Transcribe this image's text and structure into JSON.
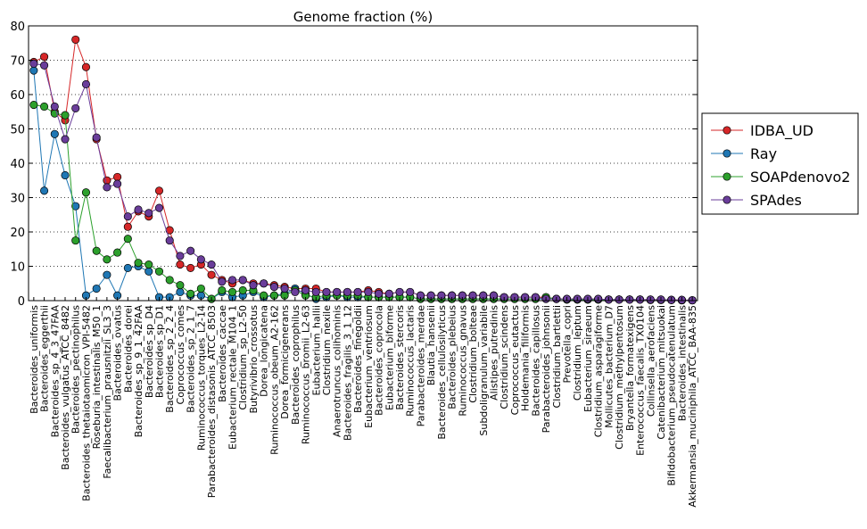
{
  "chart_data": {
    "type": "line",
    "title": "Genome fraction (%)",
    "xlabel": "",
    "ylabel": "",
    "ylim": [
      0,
      80
    ],
    "yticks": [
      0,
      10,
      20,
      30,
      40,
      50,
      60,
      70,
      80
    ],
    "grid": "horizontal dotted",
    "legend_position": "right",
    "categories": [
      "Bacteroides_uniformis",
      "Bacteroides_eggerthii",
      "Bacteroides_sp_4_3_47FAA",
      "Bacteroides_vulgatus_ATCC_8482",
      "Bacteroides_pectinophilus",
      "Bacteroides_thetaiotaomicron_VPI-5482",
      "Roseburia_intestinalis_M50_1",
      "Faecalibacterium_prausnitzii_SL3_3",
      "Bacteroides_ovatus",
      "Bacteroides_dorei",
      "Bacteroides_sp_9_1_42FAA",
      "Bacteroides_sp_D4",
      "Bacteroides_sp_D1",
      "Bacteroides_sp_2_2_4",
      "Coprococcus_comes",
      "Bacteroides_sp_2_1_7",
      "Ruminococcus_torques_L2-14",
      "Parabacteroides_distasonis_ATCC_8503",
      "Bacteroides_caccae",
      "Eubacterium_rectale_M104_1",
      "Clostridium_sp_L2-50",
      "Butyrivibrio_crossotus",
      "Dorea_longicatena",
      "Ruminococcus_obeum_A2-162",
      "Dorea_formicigenerans",
      "Bacteroides_coprophilus",
      "Ruminococcus_bromii_L2-63",
      "Eubacterium_hallii",
      "Clostridium_nexile",
      "Anaerotruncus_colihominis",
      "Bacteroides_fragilis_3_1_12",
      "Bacteroides_finegoldii",
      "Eubacterium_ventriosum",
      "Bacteroides_coprocola",
      "Eubacterium_biforme",
      "Bacteroides_stercoris",
      "Ruminococcus_lactaris",
      "Parabacteroides_merdae",
      "Blautia_hansenii",
      "Bacteroides_cellulosilyticus",
      "Bacteroides_plebeius",
      "Ruminococcus_gnavus",
      "Clostridium_bolteae",
      "Subdoligranulum_variabile",
      "Alistipes_putredinis",
      "Clostridium_scindens",
      "Coprococcus_eutactus",
      "Holdemania_filiformis",
      "Bacteroides_capillosus",
      "Parabacteroides_johnsonii",
      "Clostridium_bartlettii",
      "Prevotella_copri",
      "Clostridium_leptum",
      "Eubacterium_siraeum",
      "Clostridium_asparagiforme",
      "Mollicutes_bacterium_D7",
      "Clostridium_methylpentosum",
      "Bryantella_formatexigens",
      "Enterococcus_faecalis_TX0104",
      "Collinsella_aerofaciens",
      "Catenibacterium_mitsuokai",
      "Bifidobacterium_pseudocatenulatum",
      "Bacteroides_intestinalis",
      "Akkermansia_muciniphila_ATCC_BAA-835"
    ],
    "series": [
      {
        "name": "IDBA_UD",
        "color": "#d62728",
        "values": [
          69.5,
          71.0,
          55.0,
          52.5,
          76.0,
          68.0,
          47.0,
          35.0,
          36.0,
          21.5,
          26.0,
          24.5,
          32.0,
          20.5,
          10.5,
          9.5,
          10.5,
          7.5,
          6.0,
          5.0,
          6.0,
          5.0,
          5.0,
          4.5,
          4.0,
          3.5,
          3.5,
          3.5,
          2.5,
          2.5,
          2.5,
          2.5,
          3.0,
          2.5,
          2.0,
          2.5,
          2.5,
          1.5,
          1.5,
          1.5,
          1.5,
          1.5,
          1.5,
          1.5,
          1.5,
          1.0,
          1.0,
          1.0,
          1.0,
          1.0,
          0.5,
          0.5,
          0.5,
          0.5,
          0.5,
          0.3,
          0.3,
          0.3,
          0.3,
          0.3,
          0.3,
          0.2,
          0.2,
          0.1
        ]
      },
      {
        "name": "Ray",
        "color": "#1f77b4",
        "values": [
          67.0,
          32.0,
          48.5,
          36.5,
          27.5,
          1.5,
          3.5,
          7.5,
          1.5,
          9.5,
          10.0,
          8.5,
          1.0,
          1.0,
          2.5,
          1.5,
          1.5,
          0.5,
          2.5,
          1.0,
          1.5,
          2.5,
          1.0,
          1.5,
          2.0,
          3.5,
          2.0,
          0.5,
          1.0,
          1.5,
          1.0,
          1.0,
          1.0,
          1.0,
          1.0,
          1.0,
          1.0,
          0.5,
          0.5,
          0.5,
          0.5,
          0.5,
          0.5,
          0.5,
          0.5,
          0.5,
          0.5,
          0.5,
          0.5,
          0.5,
          0.5,
          0.3,
          0.3,
          0.3,
          0.3,
          0.3,
          0.3,
          0.3,
          0.3,
          0.2,
          0.2,
          0.2,
          0.1,
          0.1
        ]
      },
      {
        "name": "SOAPdenovo2",
        "color": "#2ca02c",
        "values": [
          57.0,
          56.5,
          54.5,
          54.0,
          17.5,
          31.5,
          14.5,
          12.0,
          14.0,
          18.0,
          11.0,
          10.5,
          8.5,
          6.0,
          4.5,
          2.0,
          3.5,
          0.5,
          3.0,
          2.5,
          3.0,
          3.0,
          1.5,
          1.5,
          1.5,
          3.0,
          1.5,
          1.0,
          1.5,
          1.5,
          1.5,
          1.5,
          1.0,
          1.0,
          1.0,
          1.0,
          1.0,
          0.5,
          0.5,
          0.5,
          0.5,
          0.5,
          0.5,
          0.5,
          0.5,
          0.5,
          0.5,
          0.5,
          0.5,
          1.0,
          0.5,
          0.3,
          0.3,
          0.3,
          0.3,
          0.3,
          0.3,
          0.3,
          0.3,
          0.2,
          0.2,
          0.2,
          0.1,
          0.1
        ]
      },
      {
        "name": "SPAdes",
        "color": "#6a3d9a",
        "values": [
          69.0,
          68.5,
          56.5,
          47.0,
          56.0,
          63.0,
          47.5,
          33.0,
          34.0,
          24.5,
          26.5,
          25.5,
          27.0,
          17.5,
          13.0,
          14.5,
          12.0,
          10.5,
          5.5,
          6.0,
          6.0,
          4.5,
          5.0,
          4.0,
          3.5,
          2.5,
          3.0,
          2.5,
          2.5,
          2.5,
          2.5,
          2.5,
          2.5,
          2.0,
          2.0,
          2.5,
          2.5,
          1.5,
          1.5,
          1.5,
          1.5,
          1.5,
          1.5,
          1.5,
          1.5,
          1.0,
          1.0,
          1.0,
          1.0,
          0.5,
          0.5,
          0.5,
          0.5,
          0.5,
          0.5,
          0.3,
          0.3,
          0.3,
          0.3,
          0.3,
          0.3,
          0.2,
          0.2,
          0.1
        ]
      }
    ]
  }
}
